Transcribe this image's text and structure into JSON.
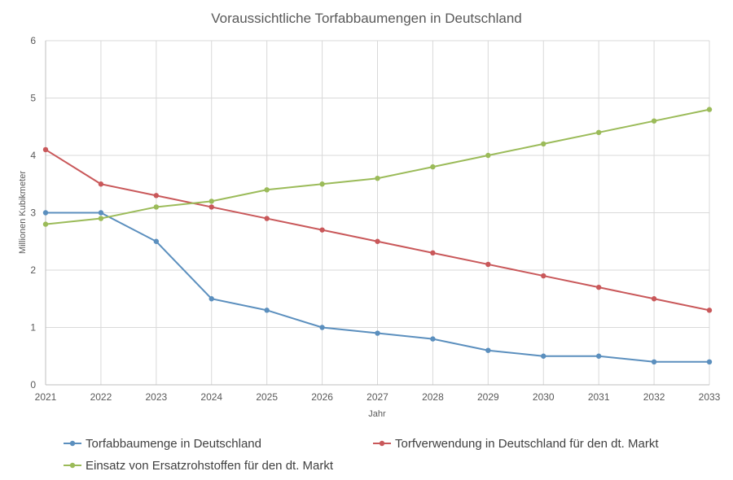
{
  "chart_data": {
    "type": "line",
    "title": "Voraussichtliche Torfabbaumengen in Deutschland",
    "xlabel": "Jahr",
    "ylabel": "Millionen Kubikmeter",
    "x": [
      "2021",
      "2022",
      "2023",
      "2024",
      "2025",
      "2026",
      "2027",
      "2028",
      "2029",
      "2030",
      "2031",
      "2032",
      "2033"
    ],
    "ylim": [
      0,
      6
    ],
    "yticks": [
      "0",
      "1",
      "2",
      "3",
      "4",
      "5",
      "6"
    ],
    "grid": true,
    "legend_position": "bottom",
    "series": [
      {
        "name": "Torfabbaumenge in Deutschland",
        "color": "#5b8fbe",
        "values": [
          3.0,
          3.0,
          2.5,
          1.5,
          1.3,
          1.0,
          0.9,
          0.8,
          0.6,
          0.5,
          0.5,
          0.4,
          0.4
        ]
      },
      {
        "name": "Torfverwendung in Deutschland für den dt. Markt",
        "color": "#c9585a",
        "values": [
          4.1,
          3.5,
          3.3,
          3.1,
          2.9,
          2.7,
          2.5,
          2.3,
          2.1,
          1.9,
          1.7,
          1.5,
          1.3
        ]
      },
      {
        "name": "Einsatz von Ersatzrohstoffen für den dt. Markt",
        "color": "#9bbb59",
        "values": [
          2.8,
          2.9,
          3.1,
          3.2,
          3.4,
          3.5,
          3.6,
          3.8,
          4.0,
          4.2,
          4.4,
          4.6,
          4.8
        ]
      }
    ]
  }
}
